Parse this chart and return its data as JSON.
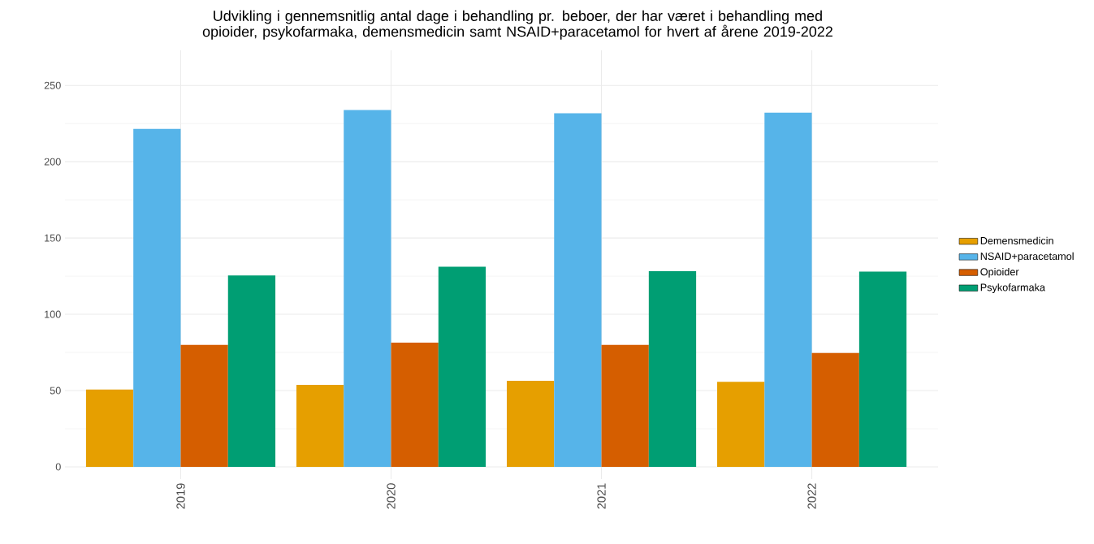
{
  "chart_data": {
    "type": "bar",
    "title": "Udvikling i gennemsnitlig antal dage i behandling pr. beboer, der har været i behandling med opioider, psykofarmaka, demensmedicin samt NSAID+paracetamol for hvert af årene 2019-2022",
    "categories": [
      "2019",
      "2020",
      "2021",
      "2022"
    ],
    "series": [
      {
        "name": "Demensmedicin",
        "color": "#e69f00",
        "values": [
          50.7,
          53.7,
          56.4,
          55.7
        ]
      },
      {
        "name": "NSAID+paracetamol",
        "color": "#56b4e9",
        "values": [
          221.5,
          233.9,
          231.7,
          232.1
        ]
      },
      {
        "name": "Opioider",
        "color": "#d55e00",
        "values": [
          79.9,
          81.4,
          79.9,
          74.6
        ]
      },
      {
        "name": "Psykofarmaka",
        "color": "#009e73",
        "values": [
          125.5,
          131.2,
          128.3,
          128.0
        ]
      }
    ],
    "ylim": [
      -8,
      273
    ],
    "yticks": [
      0,
      50,
      100,
      150,
      200,
      250
    ],
    "grid": true,
    "legend": "right"
  }
}
